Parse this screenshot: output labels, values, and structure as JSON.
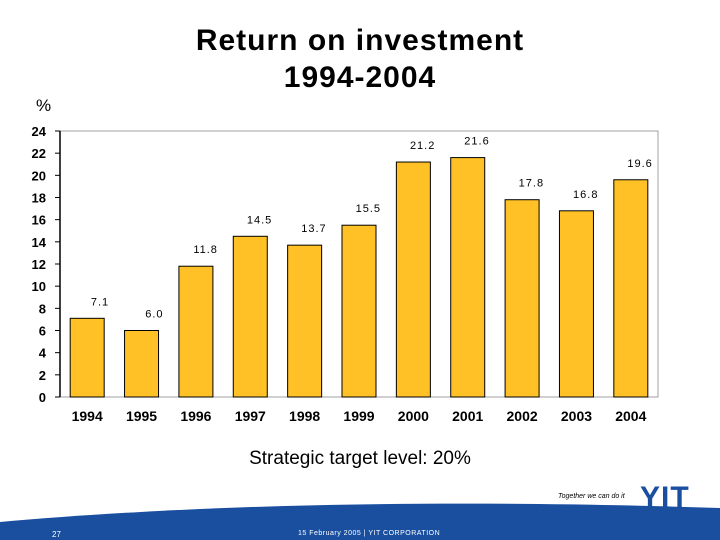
{
  "slide": {
    "title_line1": "Return on investment",
    "title_line2": "1994-2004",
    "unit": "%",
    "target_text": "Strategic target level: 20%",
    "tagline": "Together we can do it",
    "logo": "YIT",
    "page_number": "27",
    "footer": "15 February 2005   |   YIT CORPORATION"
  },
  "colors": {
    "bar": "#FFC125",
    "footer_blue": "#1a4fa0",
    "plot_border": "#a0a0a0"
  },
  "chart_data": {
    "type": "bar",
    "categories": [
      "1994",
      "1995",
      "1996",
      "1997",
      "1998",
      "1999",
      "2000",
      "2001",
      "2002",
      "2003",
      "2004"
    ],
    "values": [
      7.1,
      6.0,
      11.8,
      14.5,
      13.7,
      15.5,
      21.2,
      21.6,
      17.8,
      16.8,
      19.6
    ],
    "labels": [
      "7.1",
      "6.0",
      "11.8",
      "14.5",
      "13.7",
      "15.5",
      "21.2",
      "21.6",
      "17.8",
      "16.8",
      "19.6"
    ],
    "yticks": [
      "0",
      "2",
      "4",
      "6",
      "8",
      "10",
      "12",
      "14",
      "16",
      "18",
      "20",
      "22",
      "24"
    ],
    "ylim": [
      0,
      24
    ],
    "grid": false,
    "legend": "none"
  }
}
